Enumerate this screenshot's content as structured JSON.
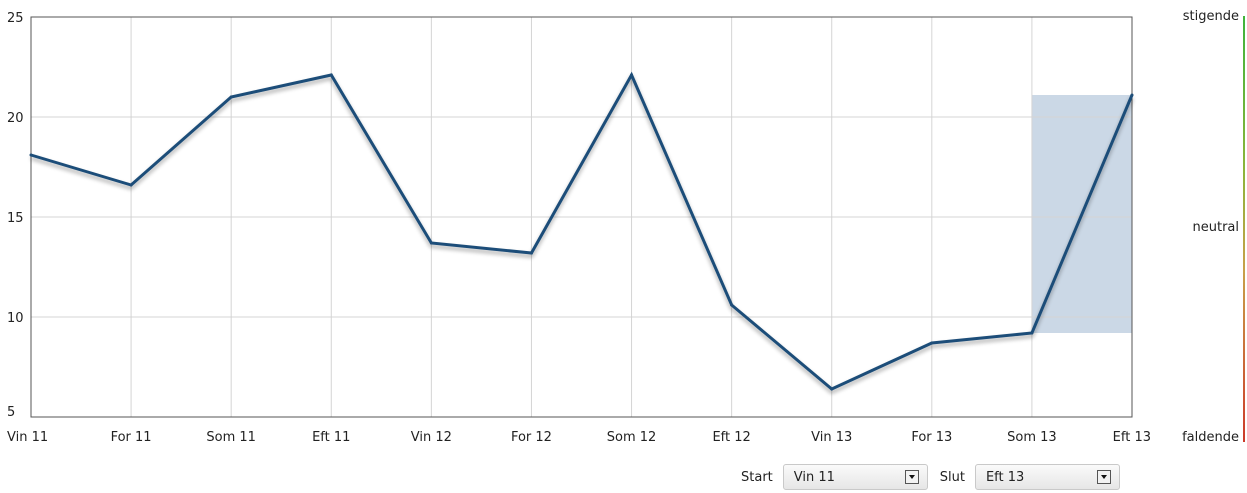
{
  "chart_data": {
    "type": "line",
    "categories": [
      "Vin 11",
      "For 11",
      "Som 11",
      "Eft 11",
      "Vin 12",
      "For 12",
      "Som 12",
      "Eft 12",
      "Vin 13",
      "For 13",
      "Som 13",
      "Eft 13"
    ],
    "series": [
      {
        "values": [
          18.1,
          16.6,
          21.0,
          22.1,
          13.7,
          13.2,
          22.1,
          10.6,
          6.4,
          8.7,
          9.2,
          21.1
        ],
        "color": "#1f4e79"
      }
    ],
    "ylim": [
      5,
      25
    ],
    "yticks": [
      5,
      10,
      15,
      20,
      25
    ],
    "highlight_range": {
      "from": "Som 13",
      "to": "Eft 13",
      "color": "#c8d6e5"
    },
    "grid": true
  },
  "trend_scale": {
    "top": "stigende",
    "middle": "neutral",
    "bottom": "faldende"
  },
  "controls": {
    "start_label": "Start",
    "start_value": "Vin 11",
    "end_label": "Slut",
    "end_value": "Eft 13"
  }
}
